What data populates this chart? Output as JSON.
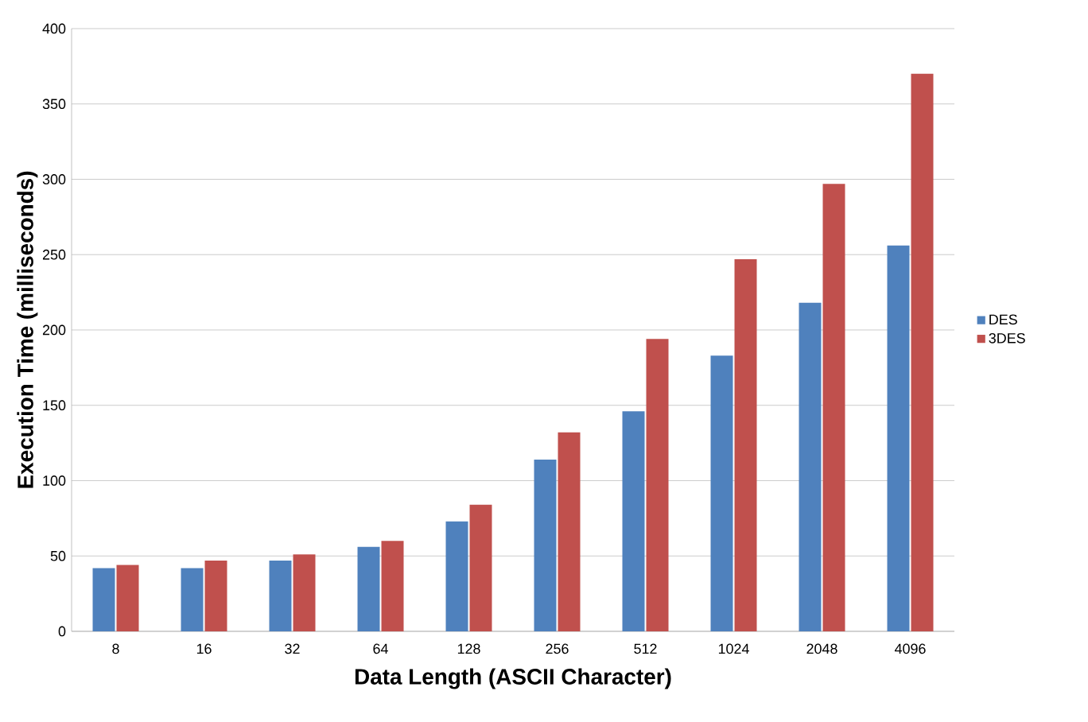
{
  "chart_data": {
    "type": "bar",
    "xlabel": "Data Length (ASCII Character)",
    "ylabel": "Execution Time (milliseconds)",
    "categories": [
      "8",
      "16",
      "32",
      "64",
      "128",
      "256",
      "512",
      "1024",
      "2048",
      "4096"
    ],
    "series": [
      {
        "name": "DES",
        "color": "#4f81bd",
        "values": [
          42,
          42,
          47,
          56,
          73,
          114,
          146,
          183,
          218,
          256
        ]
      },
      {
        "name": "3DES",
        "color": "#c0504d",
        "values": [
          44,
          47,
          51,
          60,
          84,
          132,
          194,
          247,
          297,
          370
        ]
      }
    ],
    "ylim": [
      0,
      400
    ],
    "yticks": [
      0,
      50,
      100,
      150,
      200,
      250,
      300,
      350,
      400
    ],
    "grid": "y",
    "legend": "right"
  }
}
